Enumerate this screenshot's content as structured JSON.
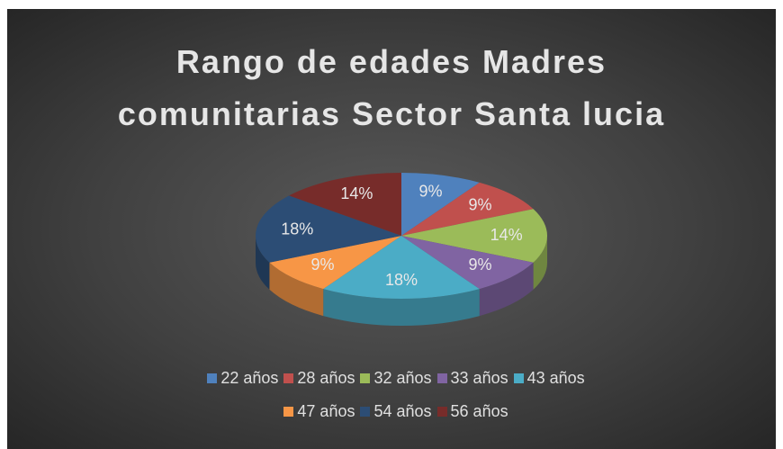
{
  "chart_data": {
    "type": "pie3d",
    "title": "Rango de edades Madres comunitarias Sector Santa lucia",
    "categories": [
      "22 años",
      "28 años",
      "32 años",
      "33 años",
      "43 años",
      "47 años",
      "54 años",
      "56 años"
    ],
    "values": [
      9,
      9,
      14,
      9,
      18,
      9,
      18,
      14
    ],
    "value_labels": [
      "9%",
      "9%",
      "14%",
      "9%",
      "18%",
      "9%",
      "18%",
      "14%"
    ],
    "colors": [
      "#4f81bd",
      "#c0504d",
      "#9bbb59",
      "#8064a2",
      "#4bacc6",
      "#f79646",
      "#2c4d75",
      "#772c2a"
    ],
    "legend": "bottom"
  }
}
